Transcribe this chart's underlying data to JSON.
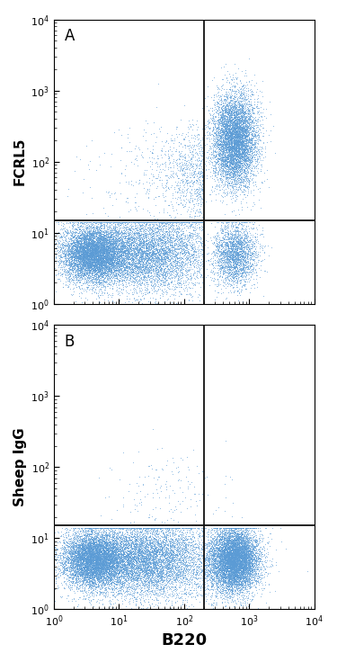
{
  "panel_A_label": "A",
  "panel_B_label": "B",
  "ylabel_A": "FCRL5",
  "ylabel_B": "Sheep IgG",
  "xlabel": "B220",
  "xlim": [
    1,
    10000
  ],
  "ylim": [
    1,
    10000
  ],
  "vline_x": 200,
  "hline_y_A": 15,
  "hline_y_B": 15,
  "dot_color": "#5b9bd5",
  "dot_size": 0.5,
  "dot_alpha": 0.5,
  "line_color": "#111111",
  "background_color": "#ffffff",
  "seed_A": 42,
  "seed_B": 99,
  "n_total_A": 25000,
  "n_total_B": 25000
}
